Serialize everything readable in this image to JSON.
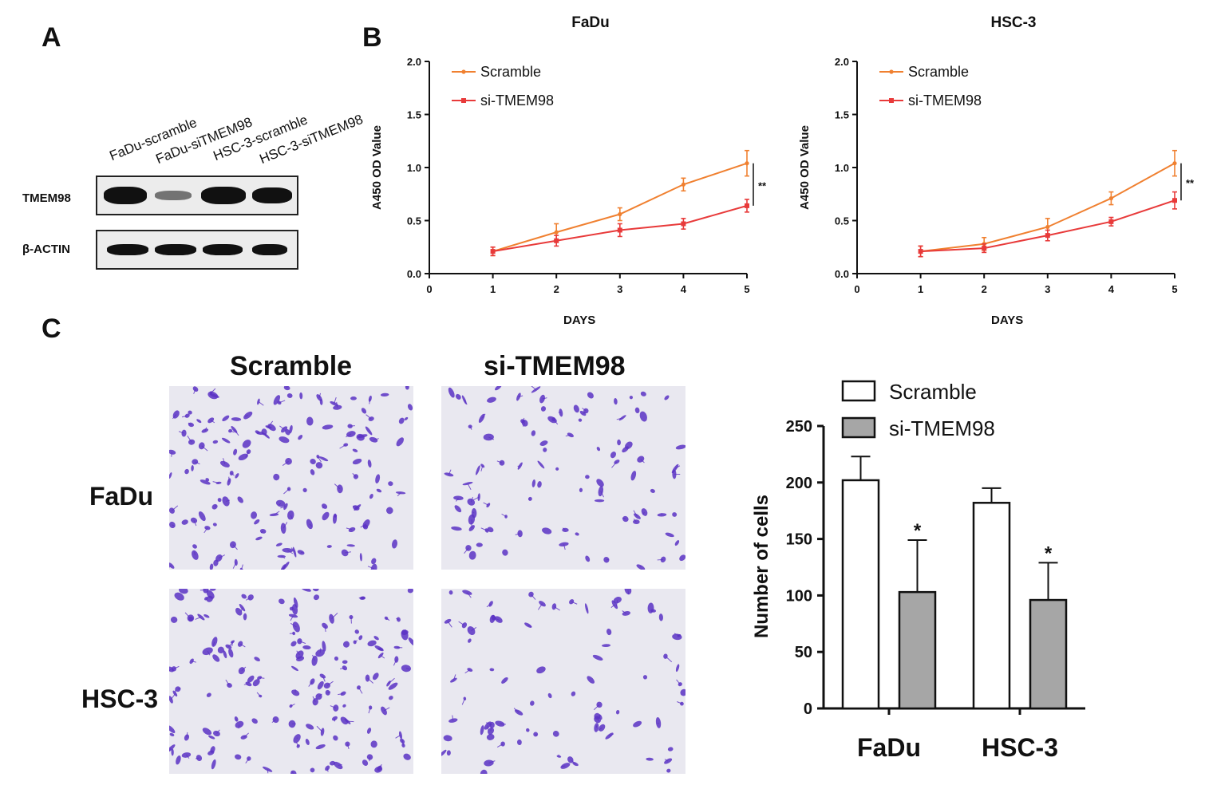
{
  "panels": {
    "a": "A",
    "b": "B",
    "c": "C"
  },
  "western_blot": {
    "lanes": [
      "FaDu-scramble",
      "FaDu-siTMEM98",
      "HSC-3-scramble",
      "HSC-3-siTMEM98"
    ],
    "rows": [
      {
        "label": "TMEM98",
        "intensities": [
          0.95,
          0.45,
          1.0,
          0.9
        ]
      },
      {
        "label": "β-ACTIN",
        "intensities": [
          0.9,
          0.9,
          0.85,
          0.75
        ]
      }
    ]
  },
  "cck8": {
    "xlabel": "DAYS",
    "ylabel": "A450 OD Value",
    "significance": "**"
  },
  "transwell": {
    "columns": [
      "Scramble",
      "si-TMEM98"
    ],
    "rows": [
      "FaDu",
      "HSC-3"
    ],
    "stain_color": "#5b32c4"
  },
  "chart_data": [
    {
      "type": "line",
      "title": "FaDu",
      "xlabel": "DAYS",
      "ylabel": "A450 OD Value",
      "xlim": [
        0,
        5
      ],
      "ylim": [
        0,
        2.0
      ],
      "x_ticks": [
        "0",
        "1",
        "2",
        "3",
        "4",
        "5"
      ],
      "y_ticks": [
        "0.0",
        "0.5",
        "1.0",
        "1.5",
        "2.0"
      ],
      "x": [
        1,
        2,
        3,
        4,
        5
      ],
      "series": [
        {
          "name": "Scramble",
          "color": "#f08030",
          "values": [
            0.21,
            0.39,
            0.56,
            0.84,
            1.04
          ],
          "errors": [
            0.04,
            0.08,
            0.06,
            0.06,
            0.12
          ]
        },
        {
          "name": "si-TMEM98",
          "color": "#e83a3a",
          "values": [
            0.21,
            0.31,
            0.41,
            0.47,
            0.64
          ],
          "errors": [
            0.04,
            0.05,
            0.06,
            0.05,
            0.06
          ]
        }
      ],
      "annotation": "**",
      "legend": "top-left"
    },
    {
      "type": "line",
      "title": "HSC-3",
      "xlabel": "DAYS",
      "ylabel": "A450 OD Value",
      "xlim": [
        0,
        5
      ],
      "ylim": [
        0,
        2.0
      ],
      "x_ticks": [
        "0",
        "1",
        "2",
        "3",
        "4",
        "5"
      ],
      "y_ticks": [
        "0.0",
        "0.5",
        "1.0",
        "1.5",
        "2.0"
      ],
      "x": [
        1,
        2,
        3,
        4,
        5
      ],
      "series": [
        {
          "name": "Scramble",
          "color": "#f08030",
          "values": [
            0.21,
            0.28,
            0.44,
            0.71,
            1.04
          ],
          "errors": [
            0.05,
            0.06,
            0.08,
            0.06,
            0.12
          ]
        },
        {
          "name": "si-TMEM98",
          "color": "#e83a3a",
          "values": [
            0.21,
            0.24,
            0.36,
            0.49,
            0.69
          ],
          "errors": [
            0.05,
            0.04,
            0.05,
            0.04,
            0.08
          ]
        }
      ],
      "annotation": "**",
      "legend": "top-left"
    },
    {
      "type": "bar",
      "title": "",
      "xlabel": "",
      "ylabel": "Number of cells",
      "ylim": [
        0,
        250
      ],
      "y_ticks": [
        "0",
        "50",
        "100",
        "150",
        "200",
        "250"
      ],
      "categories": [
        "FaDu",
        "HSC-3"
      ],
      "series": [
        {
          "name": "Scramble",
          "color": "#ffffff",
          "values": [
            202,
            182
          ],
          "errors": [
            21,
            13
          ]
        },
        {
          "name": "si-TMEM98",
          "color": "#a6a6a6",
          "values": [
            103,
            96
          ],
          "errors": [
            46,
            33
          ]
        }
      ],
      "annotations": [
        "*",
        "*"
      ],
      "legend": "top"
    }
  ]
}
